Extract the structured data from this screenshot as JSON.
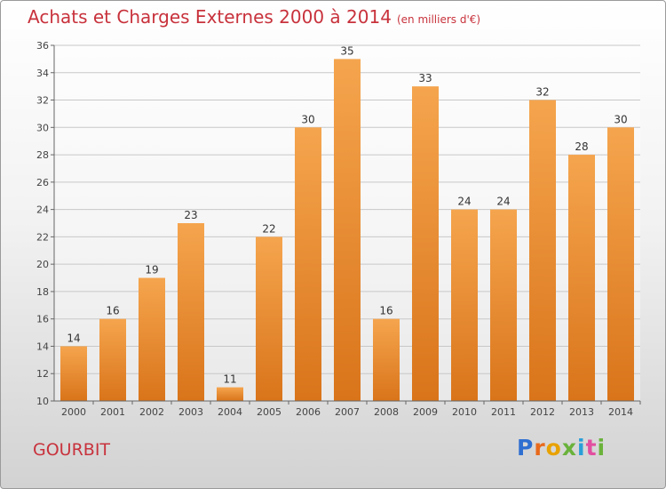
{
  "title": "Achats et Charges Externes 2000 à 2014",
  "unit": "(en milliers d'€)",
  "commune": "GOURBIT",
  "logo": {
    "text": "Proxiti"
  },
  "colors": {
    "title": "#c8323c",
    "bar_light": "#f5a54e",
    "bar_dark": "#d9741a",
    "grid": "#c8c8c8"
  },
  "chart_data": {
    "type": "bar",
    "title": "Achats et Charges Externes 2000 à 2014",
    "subtitle": "(en milliers d'€)",
    "categories": [
      "2000",
      "2001",
      "2002",
      "2003",
      "2004",
      "2005",
      "2006",
      "2007",
      "2008",
      "2009",
      "2010",
      "2011",
      "2012",
      "2013",
      "2014"
    ],
    "values": [
      14,
      16,
      19,
      23,
      11,
      22,
      30,
      35,
      16,
      33,
      24,
      24,
      32,
      28,
      30
    ],
    "ylim": [
      10,
      36
    ],
    "yticks": [
      10,
      12,
      14,
      16,
      18,
      20,
      22,
      24,
      26,
      28,
      30,
      32,
      34,
      36
    ],
    "grid": true,
    "data_labels": true
  }
}
